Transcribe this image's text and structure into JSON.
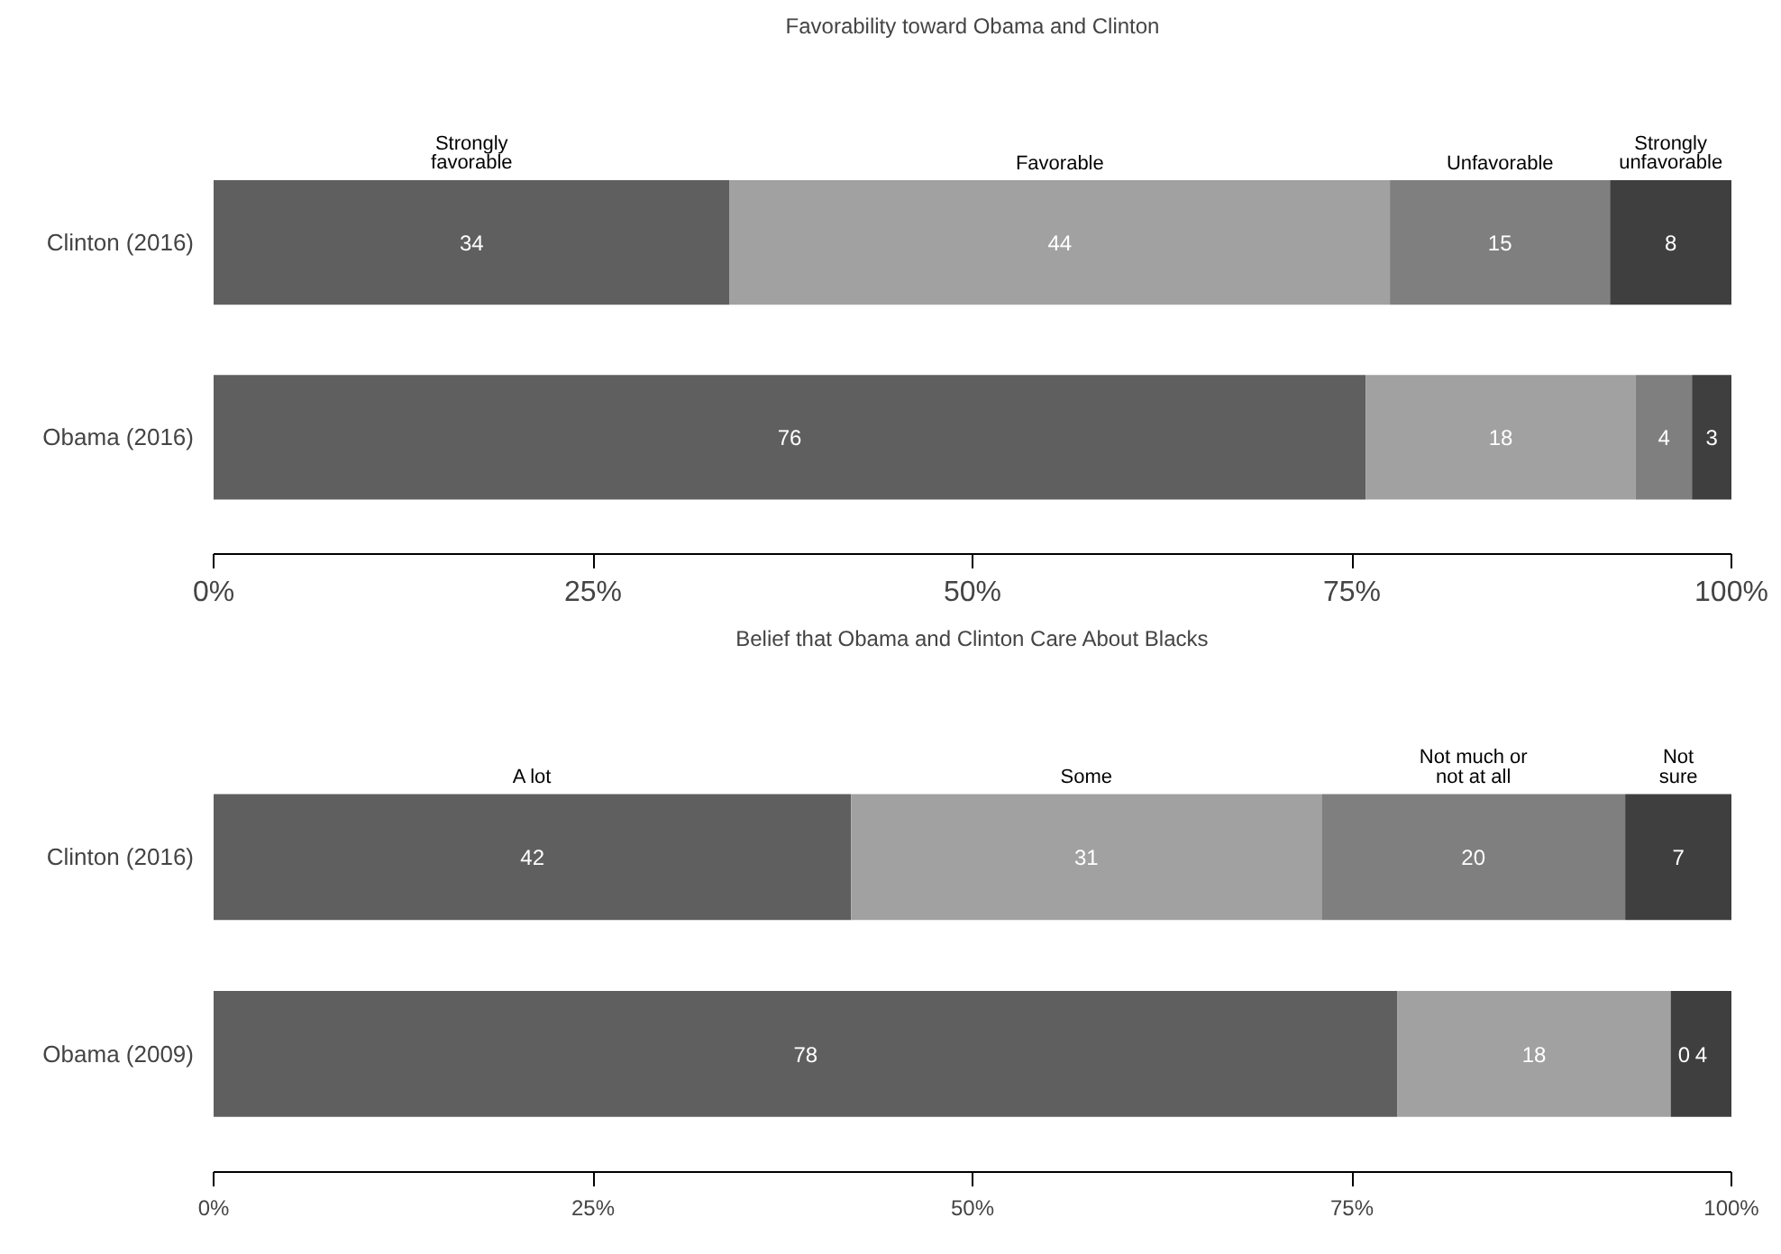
{
  "chart_data": [
    {
      "type": "bar",
      "orientation": "horizontal",
      "stacked": true,
      "title": "Favorability toward Obama and Clinton",
      "categories": [
        "Clinton (2016)",
        "Obama (2016)"
      ],
      "xlim": [
        0,
        100
      ],
      "xticks": [
        {
          "value": 0,
          "label": "0%"
        },
        {
          "value": 25,
          "label": "25%"
        },
        {
          "value": 50,
          "label": "50%"
        },
        {
          "value": 75,
          "label": "75%"
        },
        {
          "value": 100,
          "label": "100%"
        }
      ],
      "grid": false,
      "legend": false,
      "data_labels": true,
      "series": [
        {
          "name": "Strongly\nfavorable",
          "color": "#5f5f5f",
          "values": [
            34,
            75.9
          ],
          "value_labels": [
            "34",
            "76"
          ]
        },
        {
          "name": "Favorable",
          "color": "#a1a1a1",
          "values": [
            43.5,
            17.8
          ],
          "value_labels": [
            "44",
            "18"
          ]
        },
        {
          "name": "Unfavorable",
          "color": "#7f7f7f",
          "values": [
            14.5,
            3.7
          ],
          "value_labels": [
            "15",
            "4"
          ]
        },
        {
          "name": "Strongly\nunfavorable",
          "color": "#3f3f3f",
          "values": [
            8,
            2.6
          ],
          "value_labels": [
            "8",
            "3"
          ]
        }
      ]
    },
    {
      "type": "bar",
      "orientation": "horizontal",
      "stacked": true,
      "title": "Belief that Obama and Clinton Care About Blacks",
      "categories": [
        "Clinton (2016)",
        "Obama (2009)"
      ],
      "xlim": [
        0,
        100
      ],
      "xticks": [
        {
          "value": 0,
          "label": "0%"
        },
        {
          "value": 25,
          "label": "25%"
        },
        {
          "value": 50,
          "label": "50%"
        },
        {
          "value": 75,
          "label": "75%"
        },
        {
          "value": 100,
          "label": "100%"
        }
      ],
      "grid": false,
      "legend": false,
      "data_labels": true,
      "series": [
        {
          "name": "A lot",
          "color": "#5f5f5f",
          "values": [
            42,
            78
          ]
        },
        {
          "name": "Some",
          "color": "#a1a1a1",
          "values": [
            31,
            18
          ]
        },
        {
          "name": "Not much or\nnot at all",
          "color": "#7f7f7f",
          "values": [
            20,
            0
          ]
        },
        {
          "name": "Not\nsure",
          "color": "#3f3f3f",
          "values": [
            7,
            4
          ]
        }
      ]
    }
  ]
}
